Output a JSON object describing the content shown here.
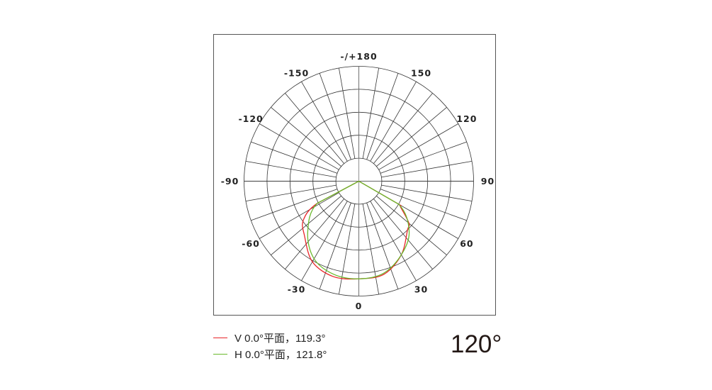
{
  "chart_data": {
    "type": "polar-line",
    "title": "",
    "angle_convention": "0 at bottom, positive clockwise toward right",
    "angle_tick_labels": [
      {
        "angle": 180,
        "label": "-/+180"
      },
      {
        "angle": 150,
        "label": "150"
      },
      {
        "angle": -150,
        "label": "-150"
      },
      {
        "angle": 120,
        "label": "120"
      },
      {
        "angle": -120,
        "label": "-120"
      },
      {
        "angle": 90,
        "label": "90"
      },
      {
        "angle": -90,
        "label": "-90"
      },
      {
        "angle": 60,
        "label": "60"
      },
      {
        "angle": -60,
        "label": "-60"
      },
      {
        "angle": 30,
        "label": "30"
      },
      {
        "angle": -30,
        "label": "-30"
      },
      {
        "angle": 0,
        "label": "0"
      }
    ],
    "radial_rings": 5,
    "spoke_step_deg": 10,
    "radial_range": [
      0,
      100
    ],
    "grid": true,
    "legend_position": "bottom-left",
    "series": [
      {
        "name": "V 0.0°平面，119.3°",
        "color": "#e8262a",
        "angles": [
          -90,
          -62,
          -55,
          -45,
          -30,
          -15,
          0,
          15,
          30,
          45,
          50,
          58,
          60,
          90
        ],
        "values": [
          0,
          41,
          59,
          67,
          81,
          86,
          85,
          84,
          74,
          60,
          57,
          43,
          39,
          0
        ]
      },
      {
        "name": "H 0.0°平面，121.8°",
        "color": "#6ab92d",
        "angles": [
          -90,
          -62,
          -45,
          -30,
          -15,
          0,
          15,
          30,
          45,
          60,
          90
        ],
        "values": [
          0,
          41,
          63,
          78,
          84,
          85,
          83,
          74,
          62,
          40,
          0
        ]
      }
    ]
  },
  "beam_angle": "120°"
}
